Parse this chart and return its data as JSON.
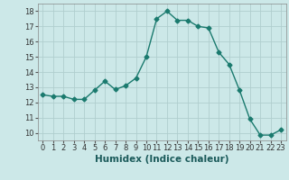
{
  "x": [
    0,
    1,
    2,
    3,
    4,
    5,
    6,
    7,
    8,
    9,
    10,
    11,
    12,
    13,
    14,
    15,
    16,
    17,
    18,
    19,
    20,
    21,
    22,
    23
  ],
  "y": [
    12.5,
    12.4,
    12.4,
    12.2,
    12.2,
    12.8,
    13.4,
    12.85,
    13.1,
    13.6,
    15.0,
    17.5,
    18.0,
    17.4,
    17.4,
    17.0,
    16.9,
    15.3,
    14.5,
    12.8,
    10.9,
    9.85,
    9.85,
    10.2
  ],
  "line_color": "#1a7a6e",
  "marker": "D",
  "marker_size": 2.5,
  "bg_color": "#cce8e8",
  "grid_color": "#b0cece",
  "xlabel": "Humidex (Indice chaleur)",
  "xlim": [
    -0.5,
    23.5
  ],
  "ylim": [
    9.5,
    18.5
  ],
  "yticks": [
    10,
    11,
    12,
    13,
    14,
    15,
    16,
    17,
    18
  ],
  "xticks": [
    0,
    1,
    2,
    3,
    4,
    5,
    6,
    7,
    8,
    9,
    10,
    11,
    12,
    13,
    14,
    15,
    16,
    17,
    18,
    19,
    20,
    21,
    22,
    23
  ],
  "tick_fontsize": 6.0,
  "xlabel_fontsize": 7.5,
  "line_width": 1.0
}
